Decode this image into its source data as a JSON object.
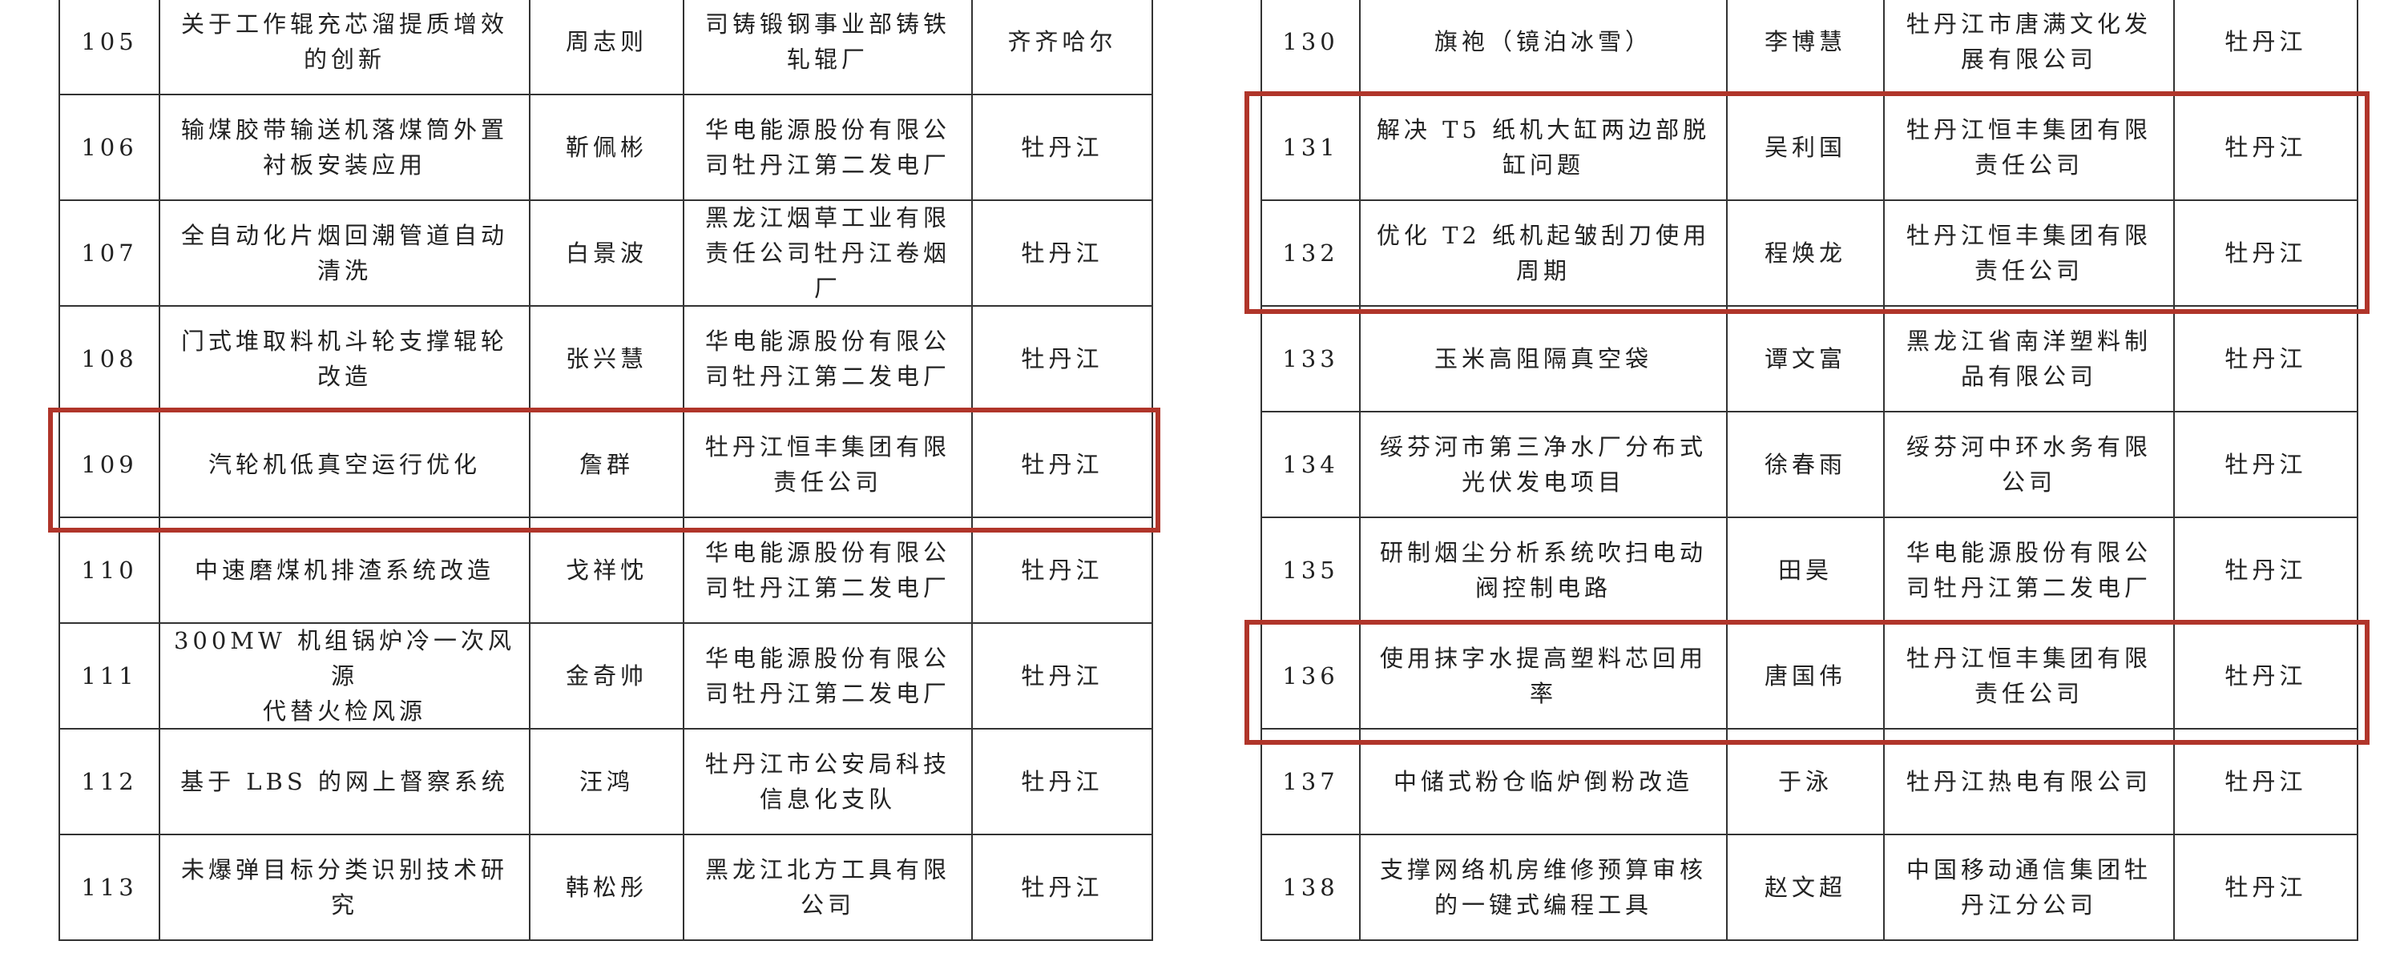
{
  "left_table": {
    "rows": [
      [
        "105",
        "关于工作辊充芯溜提质增效\n的创新",
        "周志则",
        "司铸锻钢事业部铸铁\n轧辊厂",
        "齐齐哈尔"
      ],
      [
        "106",
        "输煤胶带输送机落煤筒外置\n衬板安装应用",
        "靳佩彬",
        "华电能源股份有限公\n司牡丹江第二发电厂",
        "牡丹江"
      ],
      [
        "107",
        "全自动化片烟回潮管道自动\n清洗",
        "白景波",
        "黑龙江烟草工业有限\n责任公司牡丹江卷烟\n厂",
        "牡丹江"
      ],
      [
        "108",
        "门式堆取料机斗轮支撑辊轮\n改造",
        "张兴慧",
        "华电能源股份有限公\n司牡丹江第二发电厂",
        "牡丹江"
      ],
      [
        "109",
        "汽轮机低真空运行优化",
        "詹群",
        "牡丹江恒丰集团有限\n责任公司",
        "牡丹江"
      ],
      [
        "110",
        "中速磨煤机排渣系统改造",
        "戈祥忱",
        "华电能源股份有限公\n司牡丹江第二发电厂",
        "牡丹江"
      ],
      [
        "111",
        "300MW 机组锅炉冷一次风源\n代替火检风源",
        "金奇帅",
        "华电能源股份有限公\n司牡丹江第二发电厂",
        "牡丹江"
      ],
      [
        "112",
        "基于 LBS 的网上督察系统",
        "汪鸿",
        "牡丹江市公安局科技\n信息化支队",
        "牡丹江"
      ],
      [
        "113",
        "未爆弹目标分类识别技术研\n究",
        "韩松彤",
        "黑龙江北方工具有限\n公司",
        "牡丹江"
      ]
    ]
  },
  "right_table": {
    "rows": [
      [
        "130",
        "旗袍（镜泊冰雪）",
        "李博慧",
        "牡丹江市唐满文化发\n展有限公司",
        "牡丹江"
      ],
      [
        "131",
        "解决 T5 纸机大缸两边部脱\n缸问题",
        "吴利国",
        "牡丹江恒丰集团有限\n责任公司",
        "牡丹江"
      ],
      [
        "132",
        "优化 T2 纸机起皱刮刀使用\n周期",
        "程焕龙",
        "牡丹江恒丰集团有限\n责任公司",
        "牡丹江"
      ],
      [
        "133",
        "玉米高阻隔真空袋",
        "谭文富",
        "黑龙江省南洋塑料制\n品有限公司",
        "牡丹江"
      ],
      [
        "134",
        "绥芬河市第三净水厂分布式\n光伏发电项目",
        "徐春雨",
        "绥芬河中环水务有限\n公司",
        "牡丹江"
      ],
      [
        "135",
        "研制烟尘分析系统吹扫电动\n阀控制电路",
        "田昊",
        "华电能源股份有限公\n司牡丹江第二发电厂",
        "牡丹江"
      ],
      [
        "136",
        "使用抹字水提高塑料芯回用\n率",
        "唐国伟",
        "牡丹江恒丰集团有限\n责任公司",
        "牡丹江"
      ],
      [
        "137",
        "中储式粉仓临炉倒粉改造",
        "于泳",
        "牡丹江热电有限公司",
        "牡丹江"
      ],
      [
        "138",
        "支撑网络机房维修预算审核\n的一键式编程工具",
        "赵文超",
        "中国移动通信集团牡\n丹江分公司",
        "牡丹江"
      ]
    ]
  }
}
